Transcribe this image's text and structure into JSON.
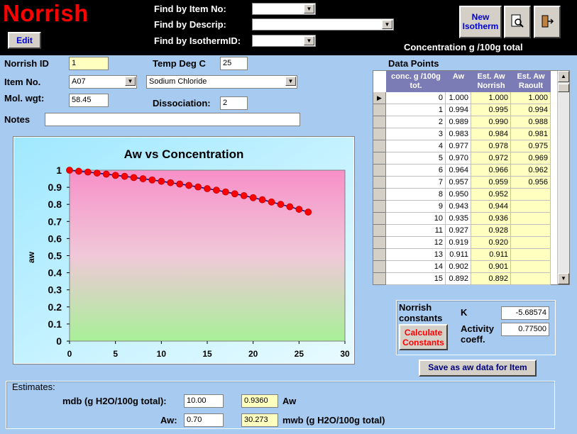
{
  "app": {
    "title": "Norrish"
  },
  "header": {
    "edit_label": "Edit",
    "find_item_no_label": "Find by Item No:",
    "find_descrip_label": "Find by Descrip:",
    "find_isotherm_label": "Find by IsothermID:",
    "new_isotherm_label": "New Isotherm",
    "concentration_caption": "Concentration g /100g total"
  },
  "form": {
    "norrish_id_label": "Norrish ID",
    "norrish_id_value": "1",
    "temp_label": "Temp Deg C",
    "temp_value": "25",
    "item_no_label": "Item No.",
    "item_no_value": "A07",
    "item_desc_value": "Sodium Chloride",
    "mol_wgt_label": "Mol. wgt:",
    "mol_wgt_value": "58.45",
    "dissociation_label": "Dissociation:",
    "dissociation_value": "2",
    "notes_label": "Notes",
    "notes_value": ""
  },
  "grid": {
    "title": "Data Points",
    "headers": [
      "conc. g /100g tot.",
      "Aw",
      "Est. Aw Norrish",
      "Est. Aw Raoult"
    ],
    "rows": [
      [
        "0",
        "1.000",
        "1.000",
        "1.000"
      ],
      [
        "1",
        "0.994",
        "0.995",
        "0.994"
      ],
      [
        "2",
        "0.989",
        "0.990",
        "0.988"
      ],
      [
        "3",
        "0.983",
        "0.984",
        "0.981"
      ],
      [
        "4",
        "0.977",
        "0.978",
        "0.975"
      ],
      [
        "5",
        "0.970",
        "0.972",
        "0.969"
      ],
      [
        "6",
        "0.964",
        "0.966",
        "0.962"
      ],
      [
        "7",
        "0.957",
        "0.959",
        "0.956"
      ],
      [
        "8",
        "0.950",
        "0.952",
        ""
      ],
      [
        "9",
        "0.943",
        "0.944",
        ""
      ],
      [
        "10",
        "0.935",
        "0.936",
        ""
      ],
      [
        "11",
        "0.927",
        "0.928",
        ""
      ],
      [
        "12",
        "0.919",
        "0.920",
        ""
      ],
      [
        "13",
        "0.911",
        "0.911",
        ""
      ],
      [
        "14",
        "0.902",
        "0.901",
        ""
      ],
      [
        "15",
        "0.892",
        "0.892",
        ""
      ]
    ]
  },
  "constants": {
    "title": "Norrish constants",
    "calc_button": "Calculate Constants",
    "k_label": "K",
    "k_value": "-5.68574",
    "activity_label": "Activity coeff.",
    "activity_value": "0.77500",
    "save_button": "Save as aw data for Item"
  },
  "estimates": {
    "title": "Estimates:",
    "mdb_label": "mdb (g H2O/100g total):",
    "mdb_value": "10.00",
    "aw_result": "0.9360",
    "aw_result_label": "Aw",
    "aw_label": "Aw:",
    "aw_value": "0.70",
    "mwb_result": "30.273",
    "mwb_label": "mwb (g H2O/100g total)"
  },
  "chart_data": {
    "type": "scatter",
    "title": "Aw vs Concentration",
    "xlabel": "",
    "ylabel": "aw",
    "xlim": [
      0,
      30
    ],
    "ylim": [
      0,
      1
    ],
    "xticks": [
      0,
      5,
      10,
      15,
      20,
      25,
      30
    ],
    "yticks": [
      0,
      0.1,
      0.2,
      0.3,
      0.4,
      0.5,
      0.6,
      0.7,
      0.8,
      0.9,
      1
    ],
    "series": [
      {
        "points_x": [
          0,
          1,
          2,
          3,
          4,
          5,
          6,
          7,
          8,
          9,
          10,
          11,
          12,
          13,
          14,
          15,
          16,
          17,
          18,
          19,
          20,
          21,
          22,
          23,
          24,
          25,
          26
        ],
        "points_y": [
          1.0,
          0.994,
          0.989,
          0.983,
          0.977,
          0.97,
          0.964,
          0.957,
          0.95,
          0.943,
          0.935,
          0.927,
          0.919,
          0.911,
          0.902,
          0.892,
          0.883,
          0.873,
          0.862,
          0.851,
          0.839,
          0.827,
          0.814,
          0.8,
          0.786,
          0.771,
          0.755
        ],
        "color": "#ff0000"
      }
    ],
    "line_color": "#000080"
  }
}
